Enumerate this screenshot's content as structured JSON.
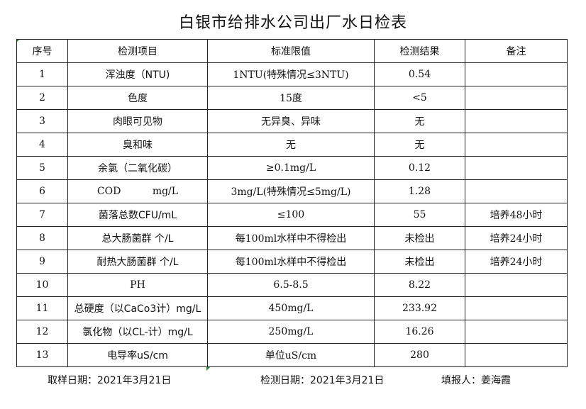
{
  "title": "白银市给排水公司出厂水日检表",
  "headers": [
    "序号",
    "检测项目",
    "标准限值",
    "检测结果",
    "备注"
  ],
  "rows": [
    [
      "1",
      "浑浊度（NTU)",
      "1NTU(特殊情况≤3NTU)",
      "0.54",
      ""
    ],
    [
      "2",
      "色度",
      "15度",
      "<5",
      ""
    ],
    [
      "3",
      "肉眼可见物",
      "无异臭、异味",
      "无",
      ""
    ],
    [
      "4",
      "臭和味",
      "无",
      "无",
      ""
    ],
    [
      "5",
      "余氯（二氧化碳）",
      "≥0.1mg/L",
      "0.12",
      ""
    ],
    [
      "6",
      "COD          mg/L",
      "3mg/L(特殊情况≤5mg/L)",
      "1.28",
      ""
    ],
    [
      "7",
      "菌落总数CFU/mL",
      "≤100",
      "55",
      "培养48小时"
    ],
    [
      "8",
      "总大肠菌群 个/L",
      "每100ml水样中不得检出",
      "未检出",
      "培养24小时"
    ],
    [
      "9",
      "耐热大肠菌群 个/L",
      "每100ml水样中不得检出",
      "未检出",
      "培养24小时"
    ],
    [
      "10",
      "PH",
      "6.5-8.5",
      "8.22",
      ""
    ],
    [
      "11",
      "总硬度（以CaCo3计）mg/L",
      "450mg/L",
      "233.92",
      ""
    ],
    [
      "12",
      "氯化物（以CL-计）mg/L",
      "250mg/L",
      "16.26",
      ""
    ],
    [
      "13",
      "电导率uS/cm",
      "单位uS/cm",
      "280",
      ""
    ]
  ],
  "footer": {
    "sampling_date": "取样日期：2021年3月21日",
    "test_date": "检测日期：2021年3月21日",
    "reporter": "填报人：姜海霞"
  }
}
